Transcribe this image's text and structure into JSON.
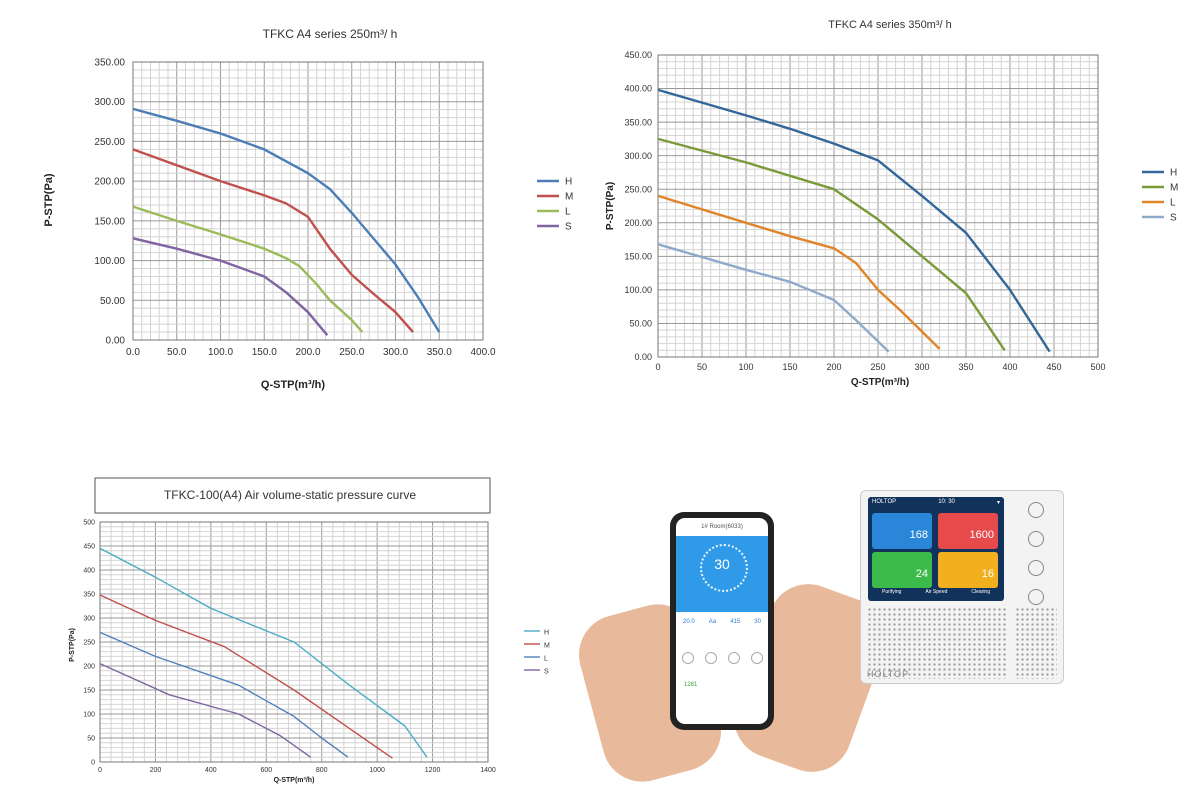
{
  "chart_data": [
    {
      "type": "line",
      "title": "TFKC A4  series  250m³/ h",
      "xlabel": "Q-STP(m³/h)",
      "ylabel": "P-STP(Pa)",
      "xlim": [
        0,
        400
      ],
      "ylim": [
        0,
        350
      ],
      "x_ticks": [
        "0.0",
        "50.0",
        "100.0",
        "150.0",
        "200.0",
        "250.0",
        "300.0",
        "350.0",
        "400.0"
      ],
      "y_ticks": [
        "0.00",
        "50.00",
        "100.00",
        "150.00",
        "200.00",
        "250.00",
        "300.00",
        "350.00"
      ],
      "grid": true,
      "legend": "right",
      "series": [
        {
          "name": "H",
          "color": "#4a7eb5",
          "points": [
            [
              0,
              291
            ],
            [
              50,
              276
            ],
            [
              100,
              260
            ],
            [
              150,
              240
            ],
            [
              200,
              210
            ],
            [
              225,
              190
            ],
            [
              250,
              160
            ],
            [
              300,
              95
            ],
            [
              325,
              55
            ],
            [
              350,
              10
            ]
          ]
        },
        {
          "name": "M",
          "color": "#c0504d",
          "points": [
            [
              0,
              240
            ],
            [
              50,
              220
            ],
            [
              100,
              200
            ],
            [
              150,
              182
            ],
            [
              175,
              172
            ],
            [
              200,
              155
            ],
            [
              225,
              115
            ],
            [
              250,
              82
            ],
            [
              275,
              58
            ],
            [
              300,
              35
            ],
            [
              320,
              10
            ]
          ]
        },
        {
          "name": "L",
          "color": "#9bbb59",
          "points": [
            [
              0,
              168
            ],
            [
              50,
              150
            ],
            [
              100,
              133
            ],
            [
              150,
              115
            ],
            [
              175,
              103
            ],
            [
              190,
              93
            ],
            [
              210,
              70
            ],
            [
              225,
              50
            ],
            [
              250,
              25
            ],
            [
              262,
              10
            ]
          ]
        },
        {
          "name": "S",
          "color": "#8064a2",
          "points": [
            [
              0,
              128
            ],
            [
              50,
              115
            ],
            [
              100,
              100
            ],
            [
              150,
              80
            ],
            [
              175,
              60
            ],
            [
              200,
              35
            ],
            [
              222,
              6
            ]
          ]
        }
      ]
    },
    {
      "type": "line",
      "title": "TFKC A4  series  350m³/ h",
      "xlabel": "Q-STP(m³/h)",
      "ylabel": "P-STP(Pa)",
      "xlim": [
        0,
        500
      ],
      "ylim": [
        0,
        450
      ],
      "x_ticks": [
        "0",
        "50",
        "100",
        "150",
        "200",
        "250",
        "300",
        "350",
        "400",
        "450",
        "500"
      ],
      "y_ticks": [
        "0.00",
        "50.00",
        "100.00",
        "150.00",
        "200.00",
        "250.00",
        "300.00",
        "350.00",
        "400.00",
        "450.00"
      ],
      "grid": true,
      "legend": "right",
      "series": [
        {
          "name": "H",
          "color": "#336699",
          "points": [
            [
              0,
              398
            ],
            [
              100,
              360
            ],
            [
              150,
              340
            ],
            [
              200,
              318
            ],
            [
              250,
              293
            ],
            [
              300,
              240
            ],
            [
              350,
              185
            ],
            [
              400,
              100
            ],
            [
              445,
              8
            ]
          ]
        },
        {
          "name": "M",
          "color": "#7a9a3a",
          "points": [
            [
              0,
              325
            ],
            [
              100,
              290
            ],
            [
              150,
              270
            ],
            [
              200,
              250
            ],
            [
              250,
              205
            ],
            [
              300,
              150
            ],
            [
              350,
              95
            ],
            [
              394,
              10
            ]
          ]
        },
        {
          "name": "L",
          "color": "#e0842a",
          "points": [
            [
              0,
              240
            ],
            [
              100,
              200
            ],
            [
              150,
              180
            ],
            [
              200,
              162
            ],
            [
              225,
              140
            ],
            [
              250,
              100
            ],
            [
              275,
              70
            ],
            [
              320,
              12
            ]
          ]
        },
        {
          "name": "S",
          "color": "#8eaacb",
          "points": [
            [
              0,
              168
            ],
            [
              100,
              130
            ],
            [
              150,
              112
            ],
            [
              200,
              85
            ],
            [
              225,
              55
            ],
            [
              262,
              8
            ]
          ]
        }
      ]
    },
    {
      "type": "line",
      "title": "TFKC-100(A4)      Air volume-static pressure curve",
      "xlabel": "Q-STP(m³/h)",
      "ylabel": "P-STP(Pa)",
      "xlim": [
        0,
        1400
      ],
      "ylim": [
        0,
        500
      ],
      "x_ticks": [
        "0",
        "200",
        "400",
        "600",
        "800",
        "1000",
        "1200",
        "1400"
      ],
      "y_ticks": [
        "0",
        "50",
        "100",
        "150",
        "200",
        "250",
        "300",
        "350",
        "400",
        "450",
        "500"
      ],
      "grid": true,
      "legend": "right",
      "series": [
        {
          "name": "H",
          "color": "#4bacc6",
          "points": [
            [
              0,
              445
            ],
            [
              200,
              385
            ],
            [
              400,
              320
            ],
            [
              700,
              250
            ],
            [
              900,
              160
            ],
            [
              1100,
              75
            ],
            [
              1180,
              10
            ]
          ]
        },
        {
          "name": "M",
          "color": "#c0504d",
          "points": [
            [
              0,
              348
            ],
            [
              200,
              295
            ],
            [
              450,
              240
            ],
            [
              700,
              150
            ],
            [
              900,
              70
            ],
            [
              1055,
              8
            ]
          ]
        },
        {
          "name": "L",
          "color": "#4f81bd",
          "points": [
            [
              0,
              270
            ],
            [
              200,
              220
            ],
            [
              500,
              160
            ],
            [
              700,
              95
            ],
            [
              800,
              50
            ],
            [
              895,
              10
            ]
          ]
        },
        {
          "name": "S",
          "color": "#8064a2",
          "points": [
            [
              0,
              205
            ],
            [
              250,
              140
            ],
            [
              500,
              100
            ],
            [
              650,
              55
            ],
            [
              760,
              10
            ]
          ]
        }
      ]
    }
  ],
  "photo": {
    "app": {
      "room": "1# Room(6033)",
      "value": "30",
      "stats": [
        "20.0",
        "Aa",
        "415",
        "30"
      ],
      "footer": "1281"
    },
    "device": {
      "brand_top": "HOLTOP",
      "time": "10: 30",
      "tiles": [
        "168",
        "1600",
        "24",
        "16"
      ],
      "tile_colors": [
        "#2a86d9",
        "#e64a4a",
        "#3cba4a",
        "#f2b01e"
      ],
      "modes": [
        "Purifying",
        "Air Speed",
        "Clearing"
      ],
      "brand_bottom": "HOLTOP"
    }
  }
}
